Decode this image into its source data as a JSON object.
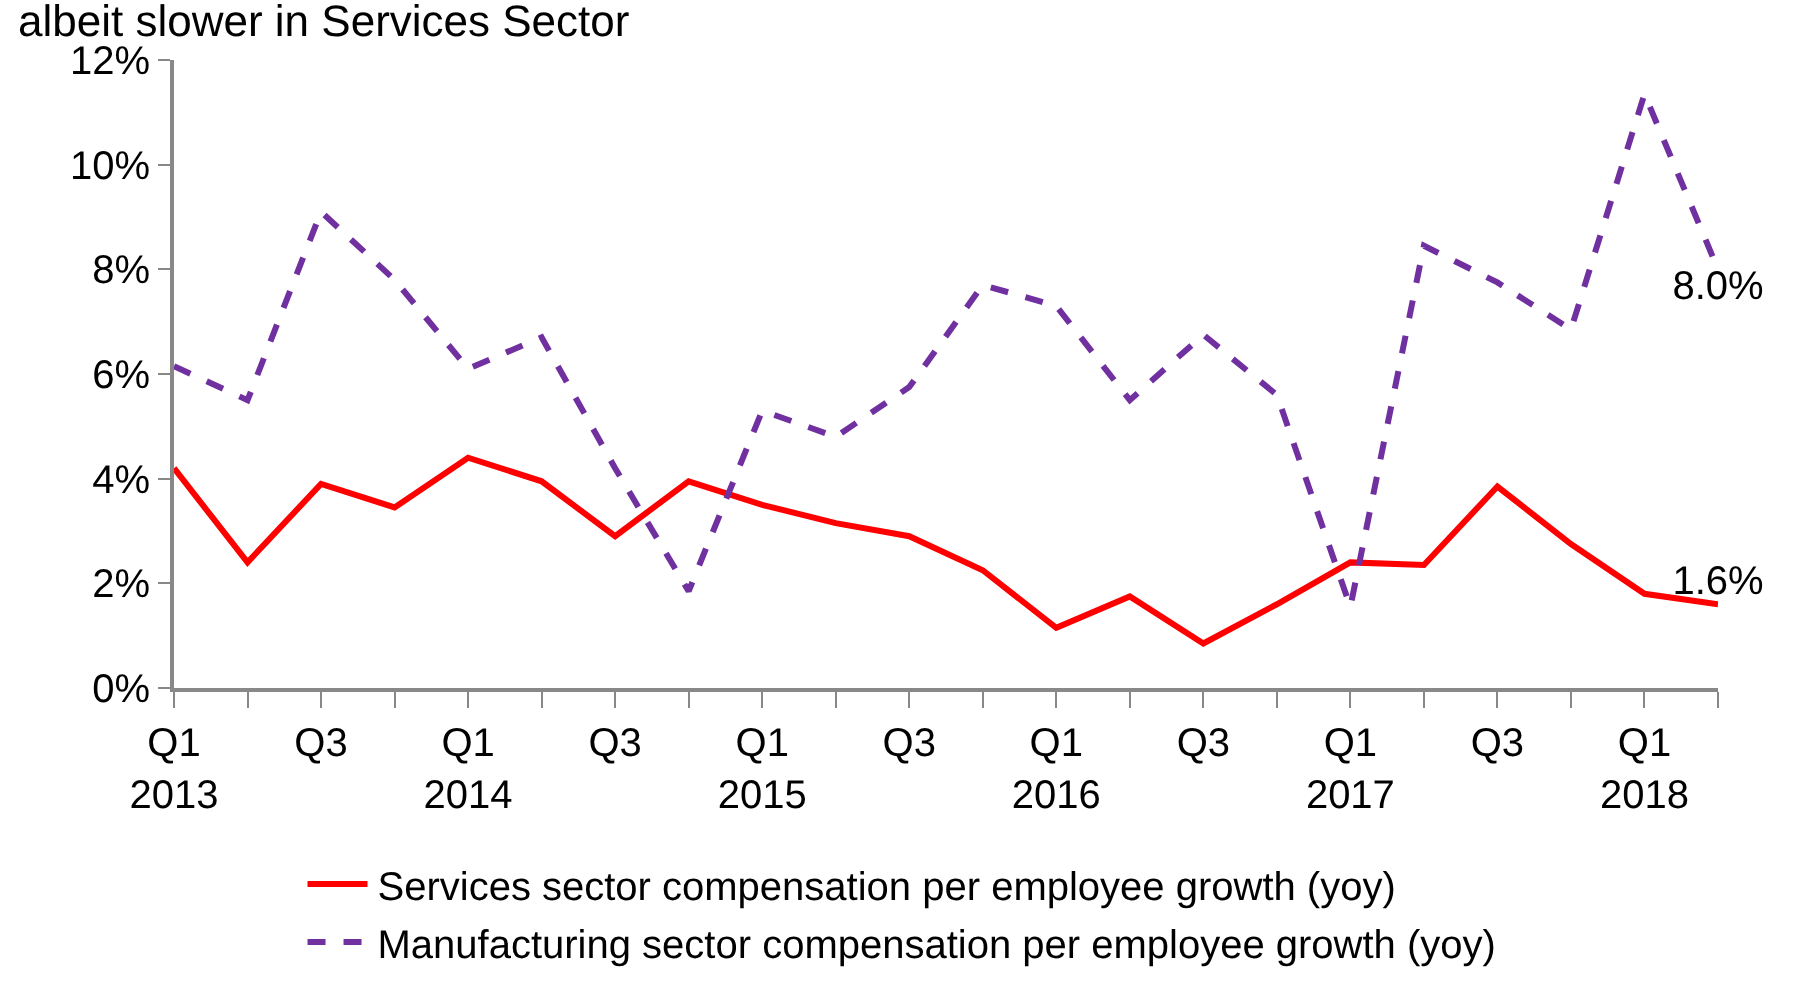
{
  "chart_data": {
    "type": "line",
    "title": "albeit slower in Services Sector",
    "categories": [
      "Q1\n2013",
      null,
      "Q3",
      null,
      "Q1\n2014",
      null,
      "Q3",
      null,
      "Q1\n2015",
      null,
      "Q3",
      null,
      "Q1\n2016",
      null,
      "Q3",
      null,
      "Q1\n2017",
      null,
      "Q3",
      null,
      "Q1\n2018",
      null
    ],
    "series": [
      {
        "name": "Services sector compensation per employee growth (yoy)",
        "color": "#ff0000",
        "line_style": "solid",
        "values": [
          4.2,
          2.4,
          3.9,
          3.45,
          4.4,
          3.95,
          2.9,
          3.95,
          3.5,
          3.15,
          2.9,
          2.25,
          1.15,
          1.75,
          0.85,
          1.6,
          2.4,
          2.35,
          3.85,
          2.75,
          1.8,
          1.6
        ],
        "value_labels": [
          null,
          null,
          null,
          null,
          null,
          null,
          null,
          null,
          null,
          null,
          null,
          null,
          null,
          null,
          null,
          null,
          null,
          null,
          null,
          null,
          null,
          "1.6%"
        ]
      },
      {
        "name": "Manufacturing sector compensation per employee growth (yoy)",
        "color": "#7030a0",
        "line_style": "dashed",
        "values": [
          6.15,
          5.5,
          9.1,
          7.8,
          6.1,
          6.7,
          4.2,
          1.85,
          5.3,
          4.8,
          5.75,
          7.7,
          7.3,
          5.5,
          6.75,
          5.6,
          1.55,
          8.45,
          7.75,
          6.85,
          11.35,
          8.0
        ],
        "value_labels": [
          null,
          null,
          null,
          null,
          null,
          null,
          null,
          null,
          null,
          null,
          null,
          null,
          null,
          null,
          null,
          null,
          null,
          null,
          null,
          null,
          null,
          "8.0%"
        ]
      }
    ],
    "ylim": [
      0,
      12
    ],
    "yticks": [
      {
        "value": 0,
        "label": "0%"
      },
      {
        "value": 2,
        "label": "2%"
      },
      {
        "value": 4,
        "label": "4%"
      },
      {
        "value": 6,
        "label": "6%"
      },
      {
        "value": 8,
        "label": "8%"
      },
      {
        "value": 10,
        "label": "10%"
      },
      {
        "value": 12,
        "label": "12%"
      }
    ],
    "legend": "bottom",
    "marker": "none"
  }
}
